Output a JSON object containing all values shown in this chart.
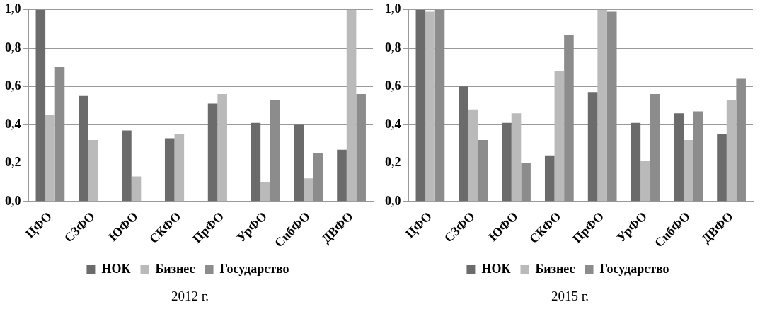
{
  "chart_data": [
    {
      "type": "bar",
      "annotations": [
        "2012 г."
      ],
      "categories": [
        "ЦФО",
        "СЗФО",
        "ЮФО",
        "СКФО",
        "ПрФО",
        "УрФО",
        "СибФО",
        "ДВФО"
      ],
      "series": [
        {
          "name": "НОК",
          "color": "#6b6b6b",
          "values": [
            1.0,
            0.55,
            0.37,
            0.33,
            0.51,
            0.41,
            0.4,
            0.27
          ]
        },
        {
          "name": "Бизнес",
          "color": "#bababa",
          "values": [
            0.45,
            0.32,
            0.13,
            0.35,
            0.56,
            0.1,
            0.12,
            1.0
          ]
        },
        {
          "name": "Государство",
          "color": "#8c8c8c",
          "values": [
            0.7,
            null,
            null,
            null,
            null,
            0.53,
            0.25,
            0.56
          ]
        }
      ],
      "ylim": [
        0,
        1
      ],
      "yticks": [
        {
          "value": 0,
          "label": "0,0"
        },
        {
          "value": 0.2,
          "label": "0,2"
        },
        {
          "value": 0.4,
          "label": "0,4"
        },
        {
          "value": 0.6,
          "label": "0,6"
        },
        {
          "value": 0.8,
          "label": "0,8"
        },
        {
          "value": 1,
          "label": "1,0"
        }
      ],
      "grid": "y",
      "legend": "bottom"
    },
    {
      "type": "bar",
      "annotations": [
        "2015 г."
      ],
      "categories": [
        "ЦФО",
        "СЗФО",
        "ЮФО",
        "СКФО",
        "ПрФО",
        "УрФО",
        "СибФО",
        "ДВФО"
      ],
      "series": [
        {
          "name": "НОК",
          "color": "#6b6b6b",
          "values": [
            1.0,
            0.6,
            0.41,
            0.24,
            0.57,
            0.41,
            0.46,
            0.35
          ]
        },
        {
          "name": "Бизнес",
          "color": "#bababa",
          "values": [
            0.99,
            0.48,
            0.46,
            0.68,
            1.0,
            0.21,
            0.32,
            0.53
          ]
        },
        {
          "name": "Государство",
          "color": "#8c8c8c",
          "values": [
            1.0,
            0.32,
            0.2,
            0.87,
            0.99,
            0.56,
            0.47,
            0.64
          ]
        }
      ],
      "ylim": [
        0,
        1
      ],
      "yticks": [
        {
          "value": 0,
          "label": "0,0"
        },
        {
          "value": 0.2,
          "label": "0,2"
        },
        {
          "value": 0.4,
          "label": "0,4"
        },
        {
          "value": 0.6,
          "label": "0,6"
        },
        {
          "value": 0.8,
          "label": "0,8"
        },
        {
          "value": 1,
          "label": "1,0"
        }
      ],
      "grid": "y",
      "legend": "bottom"
    }
  ]
}
